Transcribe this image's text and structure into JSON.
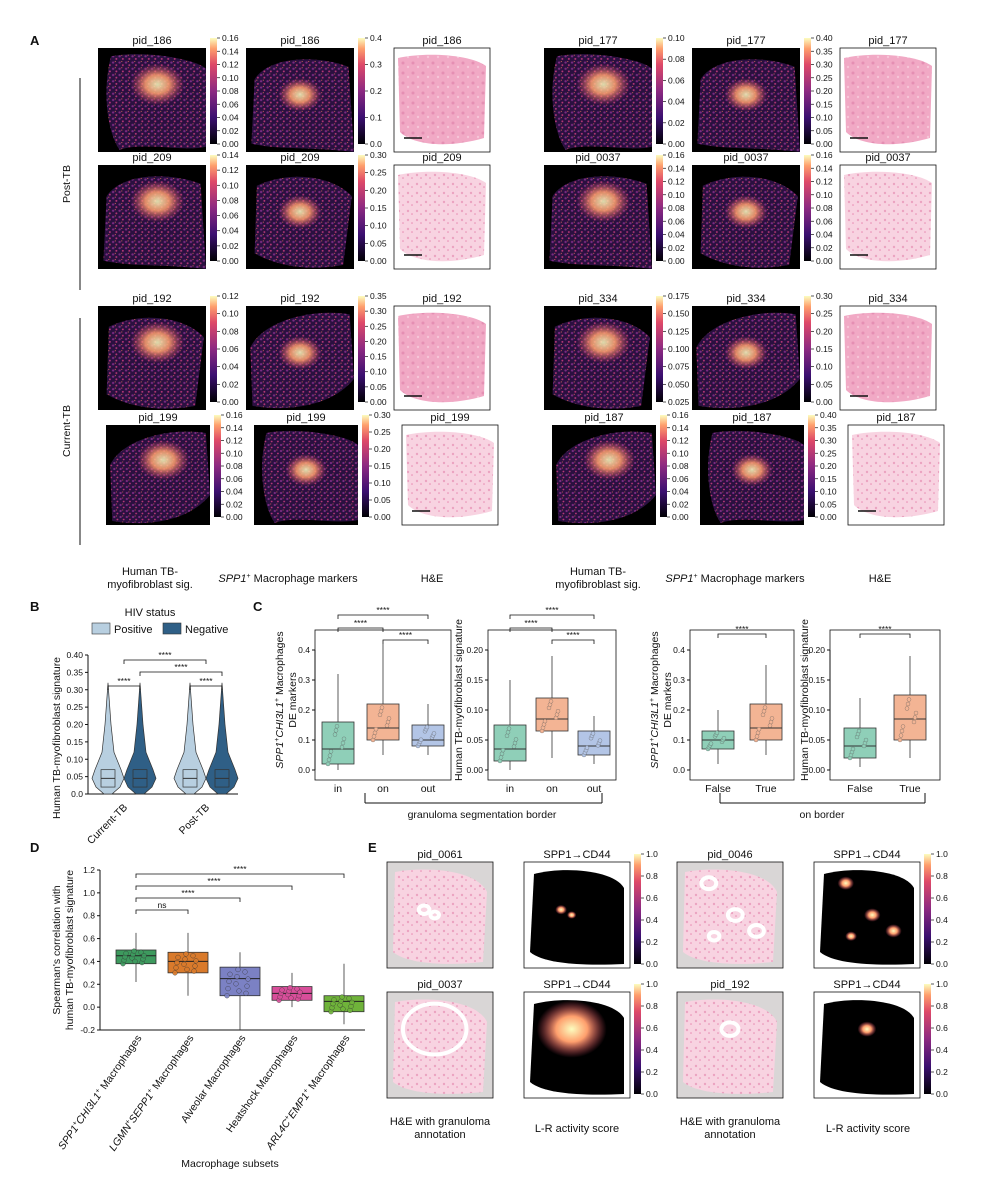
{
  "panel_letters": [
    "A",
    "B",
    "C",
    "D",
    "E"
  ],
  "panel_a": {
    "left_samples": [
      {
        "id": "pid_186",
        "sig_ticks": [
          "0.16",
          "0.14",
          "0.12",
          "0.10",
          "0.08",
          "0.06",
          "0.04",
          "0.02",
          "0.00"
        ],
        "mac_ticks": [
          "0.4",
          "0.3",
          "0.2",
          "0.1",
          "0.0"
        ]
      },
      {
        "id": "pid_209",
        "sig_ticks": [
          "0.14",
          "0.12",
          "0.10",
          "0.08",
          "0.06",
          "0.04",
          "0.02",
          "0.00"
        ],
        "mac_ticks": [
          "0.30",
          "0.25",
          "0.20",
          "0.15",
          "0.10",
          "0.05",
          "0.00"
        ]
      },
      {
        "id": "pid_192",
        "sig_ticks": [
          "0.12",
          "0.10",
          "0.08",
          "0.06",
          "0.04",
          "0.02",
          "0.00"
        ],
        "mac_ticks": [
          "0.35",
          "0.30",
          "0.25",
          "0.20",
          "0.15",
          "0.10",
          "0.05",
          "0.00"
        ]
      },
      {
        "id": "pid_199",
        "sig_ticks": [
          "0.16",
          "0.14",
          "0.12",
          "0.10",
          "0.08",
          "0.06",
          "0.04",
          "0.02",
          "0.00"
        ],
        "mac_ticks": [
          "0.30",
          "0.25",
          "0.20",
          "0.15",
          "0.10",
          "0.05",
          "0.00"
        ]
      }
    ],
    "right_samples": [
      {
        "id": "pid_177",
        "sig_ticks": [
          "0.10",
          "0.08",
          "0.06",
          "0.04",
          "0.02",
          "0.00"
        ],
        "mac_ticks": [
          "0.40",
          "0.35",
          "0.30",
          "0.25",
          "0.20",
          "0.15",
          "0.10",
          "0.05",
          "0.00"
        ]
      },
      {
        "id": "pid_0037",
        "sig_ticks": [
          "0.16",
          "0.14",
          "0.12",
          "0.10",
          "0.08",
          "0.06",
          "0.04",
          "0.02",
          "0.00"
        ],
        "mac_ticks": [
          "0.16",
          "0.14",
          "0.12",
          "0.10",
          "0.08",
          "0.06",
          "0.04",
          "0.02",
          "0.00"
        ]
      },
      {
        "id": "pid_334",
        "sig_ticks": [
          "0.175",
          "0.150",
          "0.125",
          "0.100",
          "0.075",
          "0.050",
          "0.025"
        ],
        "mac_ticks": [
          "0.30",
          "0.25",
          "0.20",
          "0.15",
          "0.10",
          "0.05",
          "0.00"
        ]
      },
      {
        "id": "pid_187",
        "sig_ticks": [
          "0.16",
          "0.14",
          "0.12",
          "0.10",
          "0.08",
          "0.06",
          "0.04",
          "0.02",
          "0.00"
        ],
        "mac_ticks": [
          "0.40",
          "0.35",
          "0.30",
          "0.25",
          "0.20",
          "0.15",
          "0.10",
          "0.05",
          "0.00"
        ]
      }
    ],
    "group_labels": [
      "Post-TB",
      "Current-TB"
    ],
    "col_caption_sig": "Human TB-\nmyofibroblast sig.",
    "col_caption_mac_italic": "SPP1",
    "col_caption_mac_sup": "+",
    "col_caption_mac_rest": " Macrophage markers",
    "col_caption_he": "H&E"
  },
  "panel_b": {
    "legend_title": "HIV status",
    "legend": [
      {
        "name": "Positive",
        "color": "#b8cfe0"
      },
      {
        "name": "Negative",
        "color": "#2f5f86"
      }
    ],
    "ylabel": "Human TB-myofibroblast signature",
    "yticks": [
      "0.40",
      "0.35",
      "0.30",
      "0.25",
      "0.20",
      "0.15",
      "0.10",
      "0.05",
      "0.0"
    ],
    "categories": [
      "Current-TB",
      "Post-TB"
    ],
    "significance": [
      "****",
      "****",
      "****",
      "****"
    ]
  },
  "panel_c": {
    "ylabel1_italic": "SPP1",
    "ylabel1_sup": "+",
    "ylabel1_italic2": "CHI3L1",
    "ylabel1_sup2": "+",
    "ylabel1_rest": " Macrophages",
    "ylabel1_line2": "DE markers",
    "ylabel2": "Human TB-myofibroblast signature",
    "ticks1": [
      "0.4",
      "0.3",
      "0.2",
      "0.1",
      "0.0"
    ],
    "ticks2": [
      "0.20",
      "0.15",
      "0.10",
      "0.05",
      "0.00"
    ],
    "cats3": [
      "in",
      "on",
      "out"
    ],
    "cats2": [
      "False",
      "True"
    ],
    "bracket1": "granuloma segmentation border",
    "bracket2": "on border",
    "sig": "****",
    "colors": {
      "in": "#8fcfb8",
      "on": "#f3b494",
      "out": "#b3c5e6"
    }
  },
  "panel_d": {
    "ylabel1": "Spearman's correlation with",
    "ylabel2": "human TB-myofibroblast signature",
    "yticks": [
      "1.2",
      "1.0",
      "0.8",
      "0.6",
      "0.4",
      "0.2",
      "0.0",
      "-0.2"
    ],
    "xlabel": "Macrophage subsets",
    "sig": [
      "ns",
      "****",
      "****",
      "****"
    ],
    "categories": [
      {
        "it": "SPP1",
        "sup": "+",
        "it2": "CHI3L1",
        "sup2": "+",
        "rest": " Macrophages",
        "color": "#3d9a5e"
      },
      {
        "it": "LGMN",
        "sup": "+",
        "it2": "SEPP1",
        "sup2": "+",
        "rest": " Macrophages",
        "color": "#d97a2b"
      },
      {
        "it": "",
        "sup": "",
        "it2": "",
        "sup2": "",
        "rest": "Alveolar Macrophages",
        "color": "#7b81c4"
      },
      {
        "it": "",
        "sup": "",
        "it2": "",
        "sup2": "",
        "rest": "Heatshock Macrophages",
        "color": "#d84e9a"
      },
      {
        "it": "ARL4C",
        "sup": "+",
        "it2": "EMP1",
        "sup2": "+",
        "rest": " Macrophages",
        "color": "#6fb33a"
      }
    ]
  },
  "panel_e": {
    "samples": [
      {
        "id": "pid_0061",
        "lr": "SPP1→CD44"
      },
      {
        "id": "pid_0046",
        "lr": "SPP1→CD44"
      },
      {
        "id": "pid_0037",
        "lr": "SPP1→CD44"
      },
      {
        "id": "pid_192",
        "lr": "SPP1→CD44"
      }
    ],
    "cb_ticks": [
      "1.0",
      "0.8",
      "0.6",
      "0.4",
      "0.2",
      "0.0"
    ],
    "caption_he_1": "H&E with granuloma",
    "caption_he_2": "annotation",
    "caption_lr": "L-R activity score"
  }
}
